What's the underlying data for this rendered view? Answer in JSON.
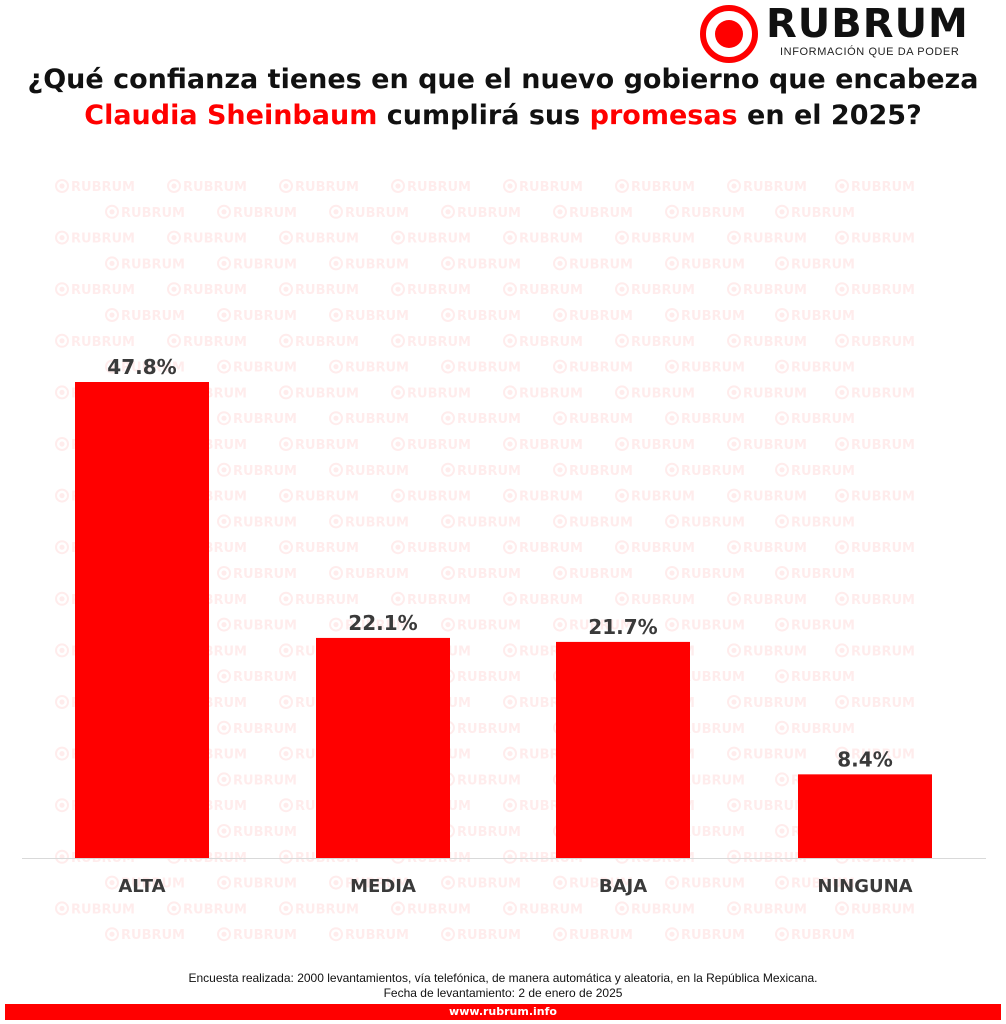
{
  "brand": {
    "name": "RUBRUM",
    "tagline": "INFORMACIÓN QUE DA PODER",
    "accent_color": "#ff0000",
    "watermark_text": "RUBRUM"
  },
  "title": {
    "part1": "¿Qué confianza tienes en que el nuevo gobierno que encabeza ",
    "highlight1": "Claudia Sheinbaum",
    "part2": " cumplirá sus ",
    "highlight2": "promesas",
    "part3": " en el 2025?"
  },
  "chart_data": {
    "type": "bar",
    "categories": [
      "ALTA",
      "MEDIA",
      "BAJA",
      "NINGUNA"
    ],
    "values": [
      47.8,
      22.1,
      21.7,
      8.4
    ],
    "data_labels": [
      "47.8%",
      "22.1%",
      "21.7%",
      "8.4%"
    ],
    "bar_color": "#ff0000",
    "ylim": [
      0,
      47.8
    ],
    "grid": false,
    "legend": "none",
    "xlabel": "",
    "ylabel": ""
  },
  "footer": {
    "note_line1": "Encuesta realizada:  2000 levantamientos, vía telefónica, de manera automática y aleatoria,  en  la República Mexicana.",
    "note_line2": "Fecha de levantamiento: 2 de enero de 2025",
    "url": "www.rubrum.info"
  }
}
